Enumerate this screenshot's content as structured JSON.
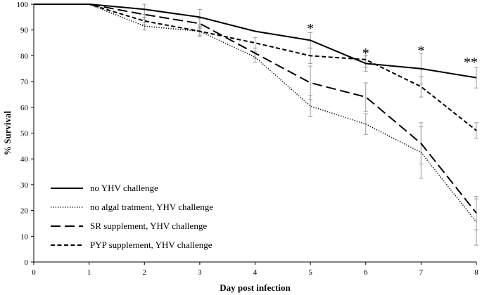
{
  "chart_data": {
    "type": "line",
    "title": "",
    "xlabel": "Day post infection",
    "ylabel": "% Survival",
    "xlim": [
      0,
      8
    ],
    "ylim": [
      0,
      100
    ],
    "x_ticks": [
      "0",
      "1",
      "2",
      "3",
      "4",
      "5",
      "6",
      "7",
      "8"
    ],
    "y_ticks": [
      "0",
      "10",
      "20",
      "30",
      "40",
      "50",
      "60",
      "70",
      "80",
      "90",
      "100"
    ],
    "grid": false,
    "legend_position": "bottom-left",
    "x": [
      0,
      1,
      2,
      3,
      4,
      5,
      6,
      7,
      8
    ],
    "series": [
      {
        "name": "no YHV challenge",
        "style": "solid",
        "values": [
          100,
          100,
          98,
          95,
          89.5,
          86,
          77,
          75,
          71.5
        ],
        "errors": [
          0,
          0,
          2,
          3,
          0,
          3,
          3,
          6,
          4
        ]
      },
      {
        "name": "no algal tratment, YHV challenge",
        "style": "dotted",
        "values": [
          100,
          100,
          91.5,
          89.5,
          79.5,
          60.5,
          53.5,
          42.5,
          15.5
        ],
        "errors": [
          0,
          0,
          1.5,
          2,
          2,
          4,
          4,
          10,
          9
        ]
      },
      {
        "name": "SR supplement, YHV challenge",
        "style": "long-dash",
        "values": [
          100,
          100,
          96,
          92.5,
          81,
          69.5,
          64,
          46,
          19
        ],
        "errors": [
          0,
          0,
          2,
          2,
          2,
          6.5,
          5.5,
          8,
          6.5
        ]
      },
      {
        "name": "PYP supplement, YHV challenge",
        "style": "short-dash",
        "values": [
          100,
          100,
          93.5,
          89.5,
          85,
          80,
          78.5,
          68,
          51
        ],
        "errors": [
          0,
          0,
          1.5,
          1.5,
          2,
          3,
          3,
          4,
          3
        ]
      }
    ],
    "annotations": [
      {
        "text": "*",
        "x": 5,
        "y": 91.5
      },
      {
        "text": "*",
        "x": 6,
        "y": 82
      },
      {
        "text": "*",
        "x": 7,
        "y": 83
      },
      {
        "text": "**",
        "x": 8,
        "y": 78.5
      }
    ]
  }
}
